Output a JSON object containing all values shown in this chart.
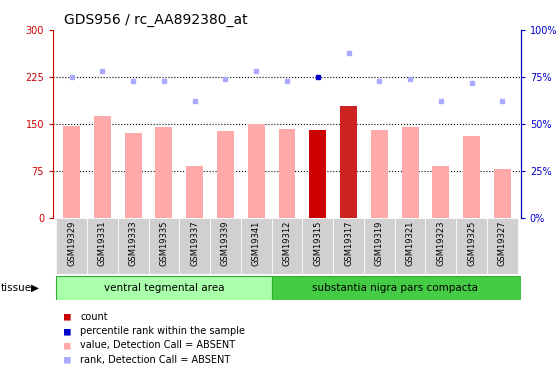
{
  "title": "GDS956 / rc_AA892380_at",
  "samples": [
    "GSM19329",
    "GSM19331",
    "GSM19333",
    "GSM19335",
    "GSM19337",
    "GSM19339",
    "GSM19341",
    "GSM19312",
    "GSM19315",
    "GSM19317",
    "GSM19319",
    "GSM19321",
    "GSM19323",
    "GSM19325",
    "GSM19327"
  ],
  "bar_values": [
    147,
    163,
    135,
    145,
    83,
    138,
    150,
    142,
    140,
    178,
    140,
    145,
    83,
    130,
    77
  ],
  "bar_colors": [
    "#ffaaaa",
    "#ffaaaa",
    "#ffaaaa",
    "#ffaaaa",
    "#ffaaaa",
    "#ffaaaa",
    "#ffaaaa",
    "#ffaaaa",
    "#cc0000",
    "#cc2222",
    "#ffaaaa",
    "#ffaaaa",
    "#ffaaaa",
    "#ffaaaa",
    "#ffaaaa"
  ],
  "rank_values": [
    75,
    78,
    73,
    73,
    62,
    74,
    78,
    73,
    75,
    88,
    73,
    74,
    62,
    72,
    62
  ],
  "rank_colors": [
    "#aaaaff",
    "#aaaaff",
    "#aaaaff",
    "#aaaaff",
    "#aaaaff",
    "#aaaaff",
    "#aaaaff",
    "#aaaaff",
    "#0000cc",
    "#aaaaff",
    "#aaaaff",
    "#aaaaff",
    "#aaaaff",
    "#aaaaff",
    "#aaaaff"
  ],
  "ylim_left": [
    0,
    300
  ],
  "ylim_right": [
    0,
    100
  ],
  "yticks_left": [
    0,
    75,
    150,
    225,
    300
  ],
  "yticks_right": [
    0,
    25,
    50,
    75,
    100
  ],
  "ytick_labels_left": [
    "0",
    "75",
    "150",
    "225",
    "300"
  ],
  "ytick_labels_right": [
    "0%",
    "25%",
    "50%",
    "75%",
    "100%"
  ],
  "hlines": [
    75,
    150,
    225
  ],
  "group1_label": "ventral tegmental area",
  "group2_label": "substantia nigra pars compacta",
  "group1_count": 7,
  "tissue_label": "tissue",
  "legend_items": [
    {
      "label": "count",
      "color": "#cc0000"
    },
    {
      "label": "percentile rank within the sample",
      "color": "#0000cc"
    },
    {
      "label": "value, Detection Call = ABSENT",
      "color": "#ffaaaa"
    },
    {
      "label": "rank, Detection Call = ABSENT",
      "color": "#aaaaff"
    }
  ],
  "title_fontsize": 10,
  "tick_fontsize": 7,
  "axis_label_color_left": "#cc0000",
  "axis_label_color_right": "#0000cc",
  "group1_color": "#aaffaa",
  "group2_color": "#44cc44",
  "group_edge_color": "#33aa33"
}
